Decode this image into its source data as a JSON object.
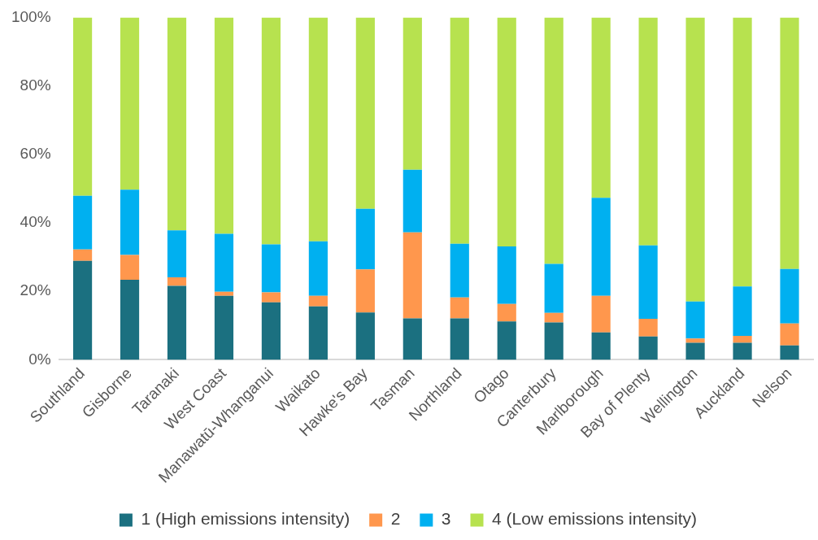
{
  "chart_data": {
    "type": "bar",
    "stacked": true,
    "categories": [
      "Southland",
      "Gisborne",
      "Taranaki",
      "West Coast",
      "Manawatū-Whanganui",
      "Waikato",
      "Hawke's Bay",
      "Tasman",
      "Northland",
      "Otago",
      "Canterbury",
      "Marlborough",
      "Bay of Plenty",
      "Wellington",
      "Auckland",
      "Nelson"
    ],
    "series": [
      {
        "name": "1 (High emissions intensity)",
        "color": "#1b7080",
        "values": [
          28.9,
          23.4,
          21.6,
          18.7,
          16.8,
          15.6,
          13.8,
          12.1,
          12.1,
          11.2,
          10.9,
          8.0,
          6.8,
          5.0,
          5.0,
          4.2
        ]
      },
      {
        "name": "2",
        "color": "#ff974d",
        "values": [
          3.3,
          7.2,
          2.5,
          1.2,
          2.9,
          3.1,
          12.6,
          25.1,
          6.1,
          5.1,
          2.8,
          10.7,
          5.2,
          1.2,
          2.0,
          6.4
        ]
      },
      {
        "name": "3",
        "color": "#00b0f0",
        "values": [
          15.7,
          19.1,
          13.7,
          16.9,
          14.0,
          15.9,
          17.7,
          18.3,
          15.7,
          16.8,
          14.3,
          28.6,
          21.4,
          10.8,
          14.4,
          15.9
        ]
      },
      {
        "name": "4 (Low emissions intensity)",
        "color": "#b7e24f",
        "values": [
          52.1,
          50.3,
          62.2,
          63.2,
          66.3,
          65.4,
          55.9,
          44.5,
          66.1,
          66.9,
          72.0,
          52.7,
          66.6,
          83.0,
          78.6,
          73.5
        ]
      }
    ],
    "ylim": [
      0,
      100
    ],
    "yticks": [
      {
        "value": 0,
        "label": "0%"
      },
      {
        "value": 20,
        "label": "20%"
      },
      {
        "value": 40,
        "label": "40%"
      },
      {
        "value": 60,
        "label": "60%"
      },
      {
        "value": 80,
        "label": "80%"
      },
      {
        "value": 100,
        "label": "100%"
      }
    ],
    "grid": false,
    "legend": "bottom"
  }
}
